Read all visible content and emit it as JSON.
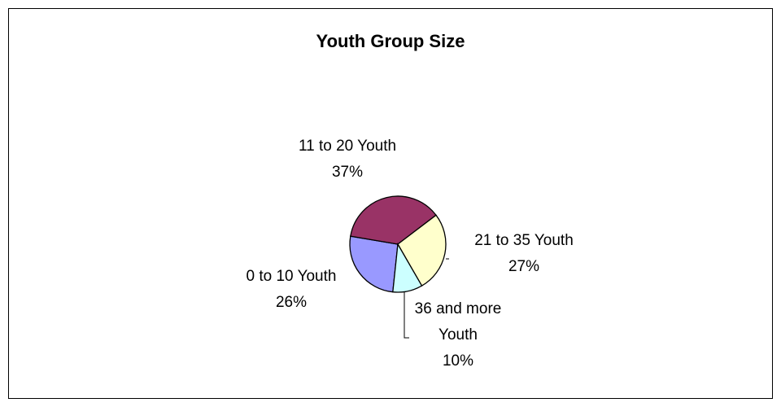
{
  "chart_data": {
    "type": "pie",
    "title": "Youth Group Size",
    "categories": [
      "0 to 10 Youth",
      "11 to 20 Youth",
      "21 to 35 Youth",
      "36 and more Youth"
    ],
    "values": [
      26,
      37,
      27,
      10
    ],
    "value_labels": [
      "26%",
      "37%",
      "27%",
      "10%"
    ],
    "colors": [
      "#9999FF",
      "#993366",
      "#FFFFCC",
      "#CCFFFF"
    ]
  }
}
